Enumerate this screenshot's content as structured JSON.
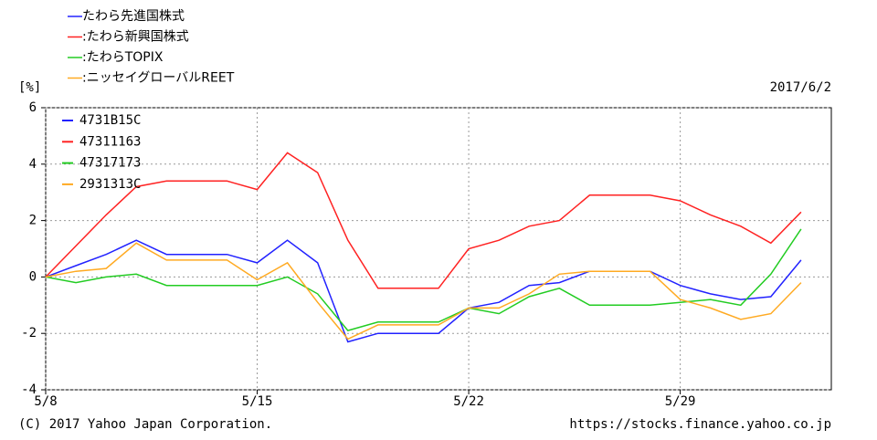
{
  "chart_data": {
    "type": "line",
    "fund_names": [
      "たわら先進国株式",
      ":たわら新興国株式",
      ":たわらTOPIX",
      ":ニッセイグローバルREET"
    ],
    "y_label": "[%]",
    "date": "2017/6/2",
    "x": [
      "5/8",
      "5/9",
      "5/10",
      "5/11",
      "5/12",
      "5/13",
      "5/14",
      "5/15",
      "5/16",
      "5/17",
      "5/18",
      "5/19",
      "5/20",
      "5/21",
      "5/22",
      "5/23",
      "5/24",
      "5/25",
      "5/26",
      "5/27",
      "5/28",
      "5/29",
      "5/30",
      "5/31",
      "6/1",
      "6/2"
    ],
    "xlim": [
      "5/8",
      "6/3"
    ],
    "xticks": [
      "5/8",
      "5/15",
      "5/22",
      "5/29"
    ],
    "ylim": [
      -4,
      6
    ],
    "yticks": [
      -4,
      -2,
      0,
      2,
      4,
      6
    ],
    "grid": true,
    "series": [
      {
        "name": "4731B15C",
        "color": "#2222ff",
        "values": [
          0,
          0.4,
          0.8,
          1.3,
          0.8,
          0.8,
          0.8,
          0.5,
          1.3,
          0.5,
          -2.3,
          -2.0,
          -2.0,
          -2.0,
          -1.1,
          -0.9,
          -0.3,
          -0.2,
          0.2,
          0.2,
          0.2,
          -0.3,
          -0.6,
          -0.8,
          -0.7,
          0.6
        ]
      },
      {
        "name": "47311163",
        "color": "#ff2222",
        "values": [
          0,
          1.1,
          2.2,
          3.2,
          3.4,
          3.4,
          3.4,
          3.1,
          4.4,
          3.7,
          1.3,
          -0.4,
          -0.4,
          -0.4,
          1.0,
          1.3,
          1.8,
          2.0,
          2.9,
          2.9,
          2.9,
          2.7,
          2.2,
          1.8,
          1.2,
          2.3
        ]
      },
      {
        "name": "47317173",
        "color": "#22cc22",
        "values": [
          0,
          -0.2,
          0,
          0.1,
          -0.3,
          -0.3,
          -0.3,
          -0.3,
          0,
          -0.6,
          -1.9,
          -1.6,
          -1.6,
          -1.6,
          -1.1,
          -1.3,
          -0.7,
          -0.4,
          -1.0,
          -1.0,
          -1.0,
          -0.9,
          -0.8,
          -1.0,
          0.1,
          1.7
        ]
      },
      {
        "name": "2931313C",
        "color": "#ffaa22",
        "values": [
          0,
          0.2,
          0.3,
          1.2,
          0.6,
          0.6,
          0.6,
          -0.1,
          0.5,
          -0.9,
          -2.2,
          -1.7,
          -1.7,
          -1.7,
          -1.1,
          -1.1,
          -0.6,
          0.1,
          0.2,
          0.2,
          0.2,
          -0.8,
          -1.1,
          -1.5,
          -1.3,
          -0.2
        ]
      }
    ],
    "copyright": "(C) 2017 Yahoo Japan Corporation.",
    "source_url": "https://stocks.finance.yahoo.co.jp"
  }
}
